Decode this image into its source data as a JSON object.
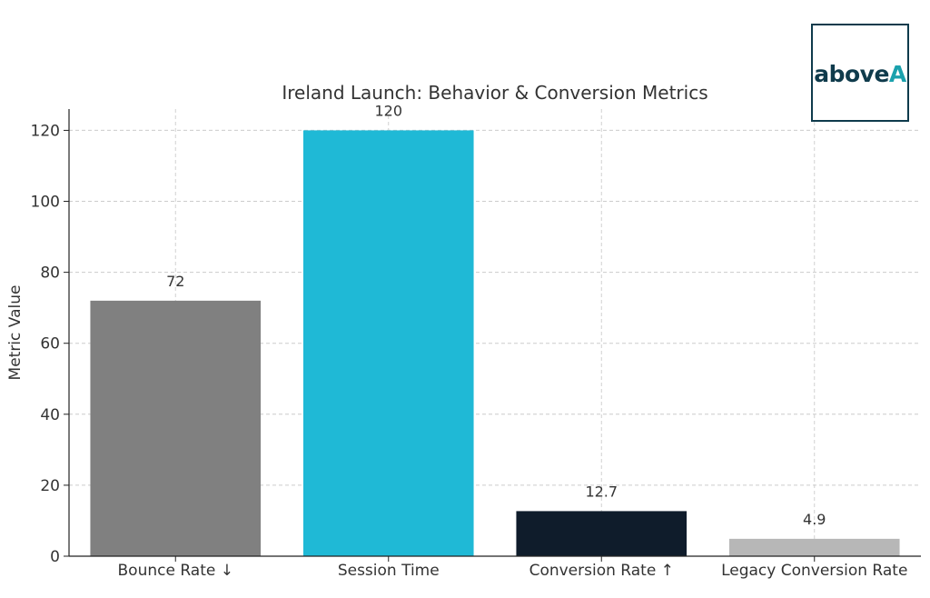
{
  "chart_data": {
    "type": "bar",
    "title": "Ireland Launch: Behavior & Conversion Metrics",
    "xlabel": "",
    "ylabel": "Metric Value",
    "categories": [
      "Bounce Rate ↓",
      "Session Time",
      "Conversion Rate ↑",
      "Legacy Conversion Rate"
    ],
    "values": [
      72,
      120,
      12.7,
      4.9
    ],
    "value_labels": [
      "72",
      "120",
      "12.7",
      "4.9"
    ],
    "bar_colors": [
      "#808080",
      "#1fb9d6",
      "#0f1c2b",
      "#b7b7b7"
    ],
    "ylim": [
      0,
      126
    ],
    "yticks": [
      0,
      20,
      40,
      60,
      80,
      100,
      120
    ],
    "ytick_labels": [
      "0",
      "20",
      "40",
      "60",
      "80",
      "100",
      "120"
    ],
    "grid": true,
    "legend": false
  },
  "logo": {
    "text_main": "above",
    "text_accent": "A",
    "colors": {
      "main": "#0f3b4c",
      "accent": "#1aa1ad",
      "border": "#0f3b4c"
    }
  },
  "colors": {
    "text": "#333333",
    "axis": "#222222",
    "grid": "#cccccc"
  }
}
